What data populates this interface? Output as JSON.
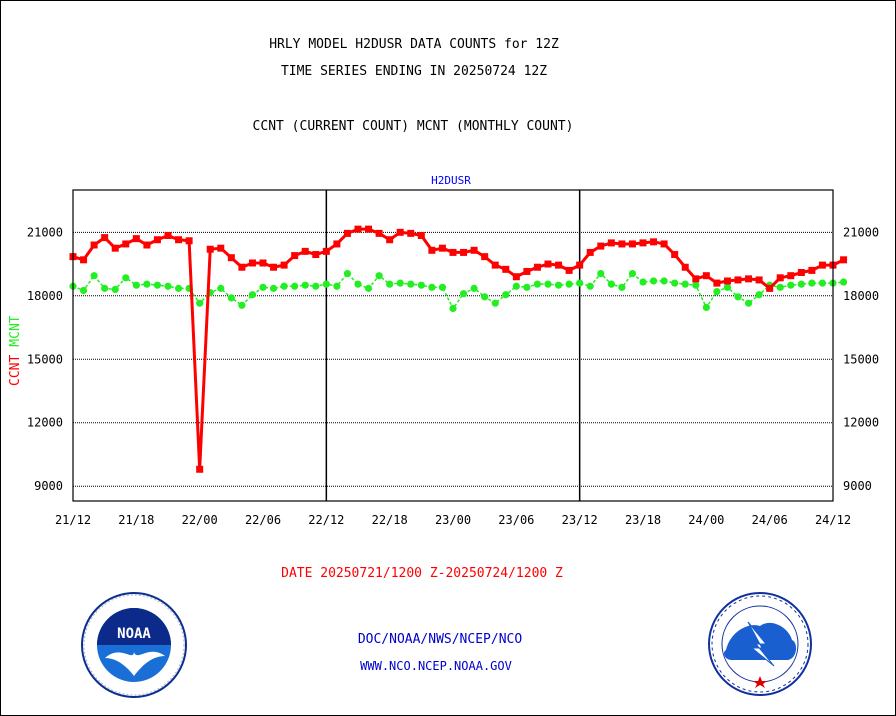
{
  "header": {
    "title1": "HRLY MODEL H2DUSR DATA COUNTS for 12Z",
    "title2": "TIME SERIES ENDING IN 20250724 12Z",
    "subtitle": "CCNT (CURRENT COUNT) MCNT (MONTHLY COUNT)"
  },
  "colors": {
    "ccnt": "#ff0000",
    "mcnt": "#22ee22",
    "link": "#0000cc",
    "station": "#0000ff"
  },
  "footer": {
    "date_range": "DATE 20250721/1200 Z-20250724/1200 Z",
    "org": "DOC/NOAA/NWS/NCEP/NCO",
    "url": "WWW.NCO.NCEP.NOAA.GOV"
  },
  "logos": {
    "left": {
      "icon": "noaa-logo",
      "text": "NOAA"
    },
    "right": {
      "icon": "nws-logo"
    }
  },
  "chart_data": {
    "type": "line",
    "title": "H2DUSR",
    "ylabel_parts": [
      {
        "text": "CCNT",
        "color": "#ff0000"
      },
      {
        "text": "MCNT",
        "color": "#22ee22"
      }
    ],
    "ylim": [
      8300,
      23000
    ],
    "yticks": [
      9000,
      12000,
      15000,
      18000,
      21000
    ],
    "ytick_labels": [
      "9000",
      "12000",
      "15000",
      "18000",
      "21000"
    ],
    "xlim": [
      0,
      72
    ],
    "xticks": [
      0,
      6,
      12,
      18,
      24,
      30,
      36,
      42,
      48,
      54,
      60,
      66,
      72
    ],
    "xtick_labels": [
      "21/12",
      "21/18",
      "22/00",
      "22/06",
      "22/12",
      "22/18",
      "23/00",
      "23/06",
      "23/12",
      "23/18",
      "24/00",
      "24/06",
      "24/12"
    ],
    "day_boundaries": [
      24,
      48
    ],
    "grid": true,
    "series": [
      {
        "name": "CCNT",
        "color": "#ff0000",
        "values": [
          19850,
          19700,
          20400,
          20750,
          20250,
          20450,
          20700,
          20400,
          20650,
          20850,
          20650,
          20600,
          9800,
          20200,
          20250,
          19800,
          19350,
          19550,
          19550,
          19350,
          19450,
          19900,
          20100,
          19950,
          20100,
          20450,
          20950,
          21150,
          21150,
          20950,
          20650,
          21000,
          20950,
          20850,
          20150,
          20250,
          20050,
          20050,
          20150,
          19850,
          19450,
          19250,
          18900,
          19150,
          19350,
          19500,
          19450,
          19200,
          19450,
          20050,
          20350,
          20500,
          20450,
          20450,
          20500,
          20550,
          20450,
          19950,
          19350,
          18800,
          18950,
          18600,
          18700,
          18750,
          18800,
          18750,
          18350,
          18850,
          18950,
          19100,
          19200,
          19450,
          19450,
          19700
        ]
      },
      {
        "name": "MCNT",
        "color": "#22ee22",
        "values": [
          18450,
          18250,
          18950,
          18350,
          18300,
          18850,
          18500,
          18550,
          18500,
          18450,
          18350,
          18350,
          17650,
          18150,
          18350,
          17900,
          17550,
          18050,
          18400,
          18350,
          18450,
          18450,
          18500,
          18450,
          18550,
          18450,
          19050,
          18550,
          18350,
          18950,
          18550,
          18600,
          18550,
          18500,
          18400,
          18400,
          17400,
          18100,
          18350,
          17950,
          17650,
          18050,
          18450,
          18400,
          18550,
          18550,
          18500,
          18550,
          18600,
          18450,
          19050,
          18550,
          18400,
          19050,
          18650,
          18700,
          18700,
          18600,
          18550,
          18500,
          17450,
          18200,
          18400,
          17950,
          17650,
          18050,
          18500,
          18400,
          18500,
          18550,
          18600,
          18600,
          18600,
          18650
        ]
      }
    ]
  }
}
